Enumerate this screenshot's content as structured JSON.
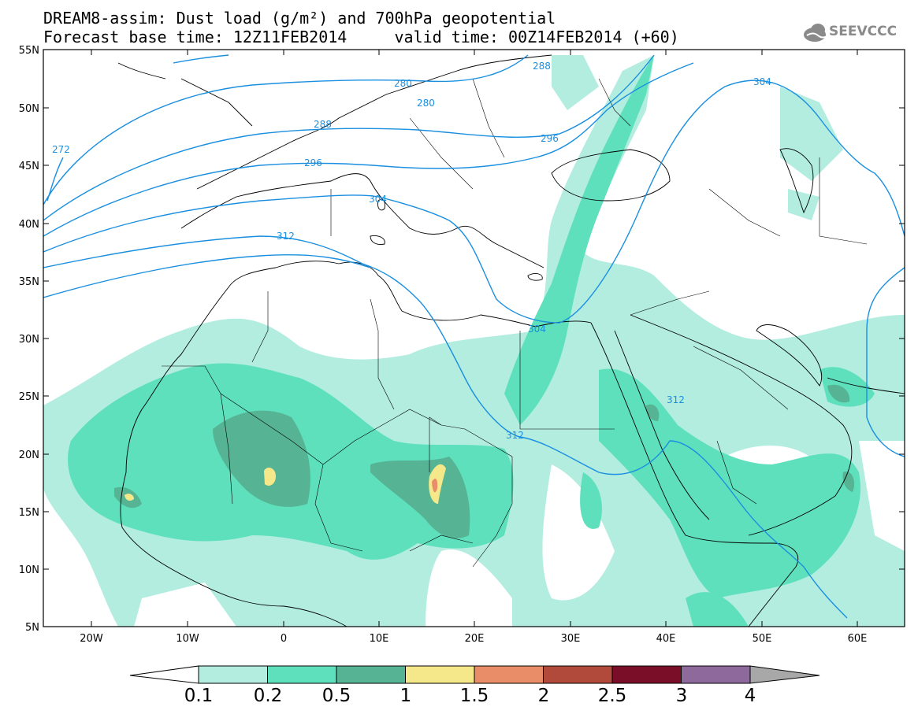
{
  "header": {
    "line1": "DREAM8-assim: Dust load (g/m²) and 700hPa geopotential",
    "line2": "Forecast base time: 12Z11FEB2014     valid time: 00Z14FEB2014 (+60)"
  },
  "logo": {
    "text": "SEEVCCC",
    "icon": "cloud-icon"
  },
  "map": {
    "lat_labels": [
      "55N",
      "50N",
      "45N",
      "40N",
      "35N",
      "30N",
      "25N",
      "20N",
      "15N",
      "10N",
      "5N"
    ],
    "lon_labels": [
      "20W",
      "10W",
      "0",
      "10E",
      "20E",
      "30E",
      "40E",
      "50E",
      "60E"
    ],
    "extent": {
      "lon": [
        -25,
        65
      ],
      "lat": [
        5,
        55
      ]
    },
    "geopotential_contour_labels": [
      "272",
      "280",
      "280",
      "288",
      "288",
      "296",
      "296",
      "304",
      "304",
      "304",
      "312",
      "312",
      "312"
    ]
  },
  "colorbar": {
    "levels": [
      "0.1",
      "0.2",
      "0.5",
      "1",
      "1.5",
      "2",
      "2.5",
      "3",
      "4"
    ],
    "colors": [
      "#b2ede0",
      "#5ee0bc",
      "#56b494",
      "#f4e88a",
      "#e98d68",
      "#b24a3c",
      "#7a0e28",
      "#8e6a9c"
    ],
    "under_color": "#ffffff",
    "over_color": "#a8a8a8"
  },
  "colors": {
    "contour": "#1a8fe0",
    "dust_light": "#b2ede0",
    "dust_mid": "#5ee0bc",
    "dust_dark": "#56b494"
  }
}
